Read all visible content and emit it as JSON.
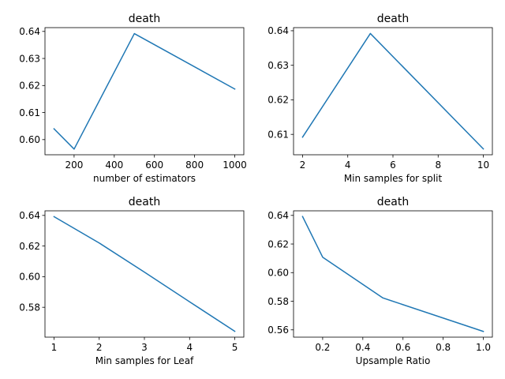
{
  "chart_data": [
    {
      "type": "line",
      "title": "death",
      "xlabel": "number of estimators",
      "ylabel": "",
      "x": [
        100,
        200,
        500,
        1000
      ],
      "series": [
        {
          "values": [
            0.604,
            0.5965,
            0.6392,
            0.6187
          ]
        }
      ],
      "xlim": [
        55,
        1045
      ],
      "ylim": [
        0.5944,
        0.6414
      ],
      "xticks": [
        200,
        400,
        600,
        800,
        1000
      ],
      "xtick_labels": [
        "200",
        "400",
        "600",
        "800",
        "1000"
      ],
      "yticks": [
        0.6,
        0.61,
        0.62,
        0.63,
        0.64
      ],
      "ytick_labels": [
        "0.60",
        "0.61",
        "0.62",
        "0.63",
        "0.64"
      ],
      "grid": false,
      "color": "#1f77b4"
    },
    {
      "type": "line",
      "title": "death",
      "xlabel": "Min samples for split",
      "ylabel": "",
      "x": [
        2,
        5,
        10
      ],
      "series": [
        {
          "values": [
            0.6092,
            0.6392,
            0.6058
          ]
        }
      ],
      "xlim": [
        1.6,
        10.4
      ],
      "ylim": [
        0.6041,
        0.6409
      ],
      "xticks": [
        2,
        4,
        6,
        8,
        10
      ],
      "xtick_labels": [
        "2",
        "4",
        "6",
        "8",
        "10"
      ],
      "yticks": [
        0.61,
        0.62,
        0.63,
        0.64
      ],
      "ytick_labels": [
        "0.61",
        "0.62",
        "0.63",
        "0.64"
      ],
      "grid": false,
      "color": "#1f77b4"
    },
    {
      "type": "line",
      "title": "death",
      "xlabel": "Min samples for Leaf",
      "ylabel": "",
      "x": [
        1,
        2,
        3,
        4,
        5
      ],
      "series": [
        {
          "values": [
            0.6392,
            0.622,
            0.603,
            0.5836,
            0.5643
          ]
        }
      ],
      "xlim": [
        0.8,
        5.2
      ],
      "ylim": [
        0.5605,
        0.643
      ],
      "xticks": [
        1,
        2,
        3,
        4,
        5
      ],
      "xtick_labels": [
        "1",
        "2",
        "3",
        "4",
        "5"
      ],
      "yticks": [
        0.58,
        0.6,
        0.62,
        0.64
      ],
      "ytick_labels": [
        "0.58",
        "0.60",
        "0.62",
        "0.64"
      ],
      "grid": false,
      "color": "#1f77b4"
    },
    {
      "type": "line",
      "title": "death",
      "xlabel": "Upsample Ratio",
      "ylabel": "",
      "x": [
        0.1,
        0.2,
        0.5,
        1.0
      ],
      "series": [
        {
          "values": [
            0.6392,
            0.6108,
            0.5823,
            0.5589
          ]
        }
      ],
      "xlim": [
        0.055,
        1.045
      ],
      "ylim": [
        0.5549,
        0.6432
      ],
      "xticks": [
        0.2,
        0.4,
        0.6,
        0.8,
        1.0
      ],
      "xtick_labels": [
        "0.2",
        "0.4",
        "0.6",
        "0.8",
        "1.0"
      ],
      "yticks": [
        0.56,
        0.58,
        0.6,
        0.62,
        0.64
      ],
      "ytick_labels": [
        "0.56",
        "0.58",
        "0.60",
        "0.62",
        "0.64"
      ],
      "grid": false,
      "color": "#1f77b4"
    }
  ]
}
